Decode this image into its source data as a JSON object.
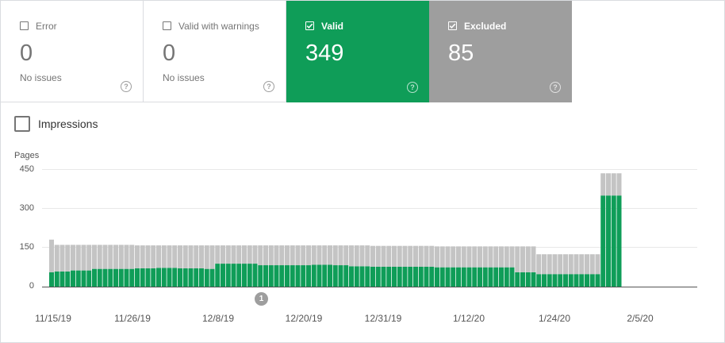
{
  "cards": {
    "error": {
      "label": "Error",
      "count": "0",
      "sub": "No issues",
      "checked": false
    },
    "warn": {
      "label": "Valid with warnings",
      "count": "0",
      "sub": "No issues",
      "checked": false
    },
    "valid": {
      "label": "Valid",
      "count": "349",
      "checked": true,
      "color": "#0f9d58"
    },
    "excluded": {
      "label": "Excluded",
      "count": "85",
      "checked": true,
      "color": "#9e9e9e"
    }
  },
  "help_glyph": "?",
  "impressions": {
    "label": "Impressions",
    "checked": false
  },
  "annotation": {
    "label": "1"
  },
  "chart_data": {
    "type": "bar",
    "stacked": true,
    "ylabel": "Pages",
    "y_ticks": [
      "450",
      "300",
      "150",
      "0"
    ],
    "ylim": [
      0,
      450
    ],
    "x_tick_labels": [
      "11/15/19",
      "11/26/19",
      "12/8/19",
      "12/20/19",
      "12/31/19",
      "1/12/20",
      "1/24/20",
      "2/5/20"
    ],
    "grid": true,
    "series": [
      {
        "name": "Valid",
        "color": "#0f9d58",
        "values": [
          55,
          58,
          58,
          58,
          62,
          62,
          62,
          62,
          68,
          68,
          68,
          68,
          68,
          68,
          68,
          68,
          70,
          70,
          70,
          70,
          72,
          72,
          72,
          72,
          70,
          70,
          70,
          70,
          70,
          68,
          68,
          88,
          88,
          88,
          88,
          88,
          88,
          88,
          88,
          82,
          82,
          82,
          82,
          82,
          82,
          82,
          82,
          82,
          82,
          84,
          84,
          84,
          84,
          82,
          82,
          82,
          78,
          78,
          78,
          78,
          76,
          76,
          76,
          76,
          76,
          76,
          76,
          76,
          76,
          76,
          76,
          76,
          74,
          74,
          74,
          74,
          74,
          74,
          74,
          74,
          74,
          74,
          74,
          74,
          74,
          74,
          74,
          55,
          55,
          55,
          55,
          48,
          48,
          48,
          48,
          48,
          48,
          48,
          48,
          48,
          48,
          48,
          48,
          349,
          349,
          349,
          349
        ]
      },
      {
        "name": "Excluded",
        "color": "#c4c4c4",
        "values": [
          125,
          102,
          102,
          102,
          98,
          98,
          98,
          98,
          92,
          92,
          92,
          92,
          92,
          92,
          92,
          92,
          88,
          88,
          88,
          88,
          86,
          86,
          86,
          86,
          88,
          88,
          88,
          88,
          88,
          90,
          90,
          70,
          70,
          70,
          70,
          70,
          70,
          70,
          70,
          76,
          76,
          76,
          76,
          76,
          76,
          76,
          76,
          76,
          76,
          74,
          74,
          74,
          74,
          76,
          76,
          76,
          80,
          80,
          80,
          80,
          80,
          80,
          80,
          80,
          80,
          80,
          80,
          80,
          80,
          80,
          80,
          80,
          80,
          80,
          80,
          80,
          80,
          80,
          80,
          80,
          80,
          80,
          80,
          80,
          80,
          80,
          80,
          99,
          99,
          99,
          99,
          76,
          76,
          76,
          76,
          76,
          76,
          76,
          76,
          76,
          76,
          76,
          76,
          85,
          85,
          85,
          85
        ]
      }
    ]
  }
}
